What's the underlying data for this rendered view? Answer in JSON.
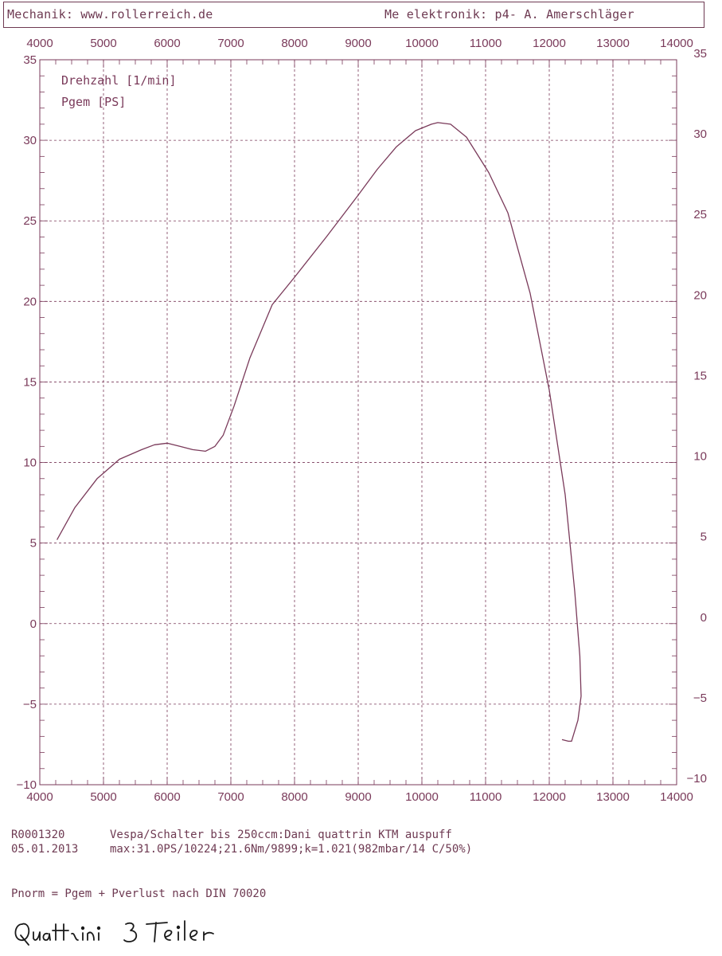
{
  "header": {
    "mechanic": "Mechanik:  www.rollerreich.de",
    "measurement": "Me elektronik: p4- A. Amerschläger"
  },
  "legend": {
    "line1": "Drehzahl [1/min]",
    "line2": "Pgem [PS]"
  },
  "chart_data": {
    "type": "line",
    "xlabel": "Drehzahl [1/min]",
    "ylabel": "Pgem [PS]",
    "xlim": [
      4000,
      14000
    ],
    "ylim": [
      -10,
      35
    ],
    "x_ticks": [
      4000,
      5000,
      6000,
      7000,
      8000,
      9000,
      10000,
      11000,
      12000,
      13000,
      14000
    ],
    "y_ticks_left": [
      "35",
      "30",
      "25",
      "20",
      "15",
      "10",
      "5",
      "0",
      "−5",
      "−10"
    ],
    "y_ticks_right": [
      "35",
      "30",
      "25",
      "20",
      "15",
      "10",
      "5",
      "0",
      "−5",
      "−10"
    ],
    "grid": true,
    "series": [
      {
        "name": "Pgem [PS]",
        "x": [
          4270,
          4550,
          4900,
          5250,
          5600,
          5800,
          6000,
          6200,
          6400,
          6600,
          6750,
          6880,
          7050,
          7300,
          7650,
          8000,
          8500,
          9000,
          9300,
          9600,
          9900,
          10150,
          10250,
          10450,
          10700,
          11050,
          11350,
          11700,
          12000,
          12250,
          12400,
          12480,
          12500,
          12450,
          12350,
          12300,
          12200
        ],
        "y": [
          5.2,
          7.2,
          9.0,
          10.2,
          10.8,
          11.1,
          11.2,
          11.0,
          10.8,
          10.7,
          11.0,
          11.7,
          13.5,
          16.5,
          19.8,
          21.5,
          24.0,
          26.6,
          28.2,
          29.6,
          30.6,
          31.0,
          31.1,
          31.0,
          30.2,
          28.0,
          25.5,
          20.5,
          14.5,
          8.0,
          2.0,
          -2.0,
          -4.5,
          -6.0,
          -7.3,
          -7.3,
          -7.2
        ]
      }
    ],
    "color": "#7a3a5a"
  },
  "footer": {
    "run_id": "R0001320",
    "description": "Vespa/Schalter bis 250ccm:Dani quattrin KTM auspuff",
    "date": "05.01.2013",
    "max_values": "max:31.0PS/10224;21.6Nm/9899;k=1.021(982mbar/14 C/50%)",
    "norm_note": "Pnorm = Pgem + Pverlust nach DIN 70020"
  },
  "handwriting": "Quattrini 3Teiler"
}
